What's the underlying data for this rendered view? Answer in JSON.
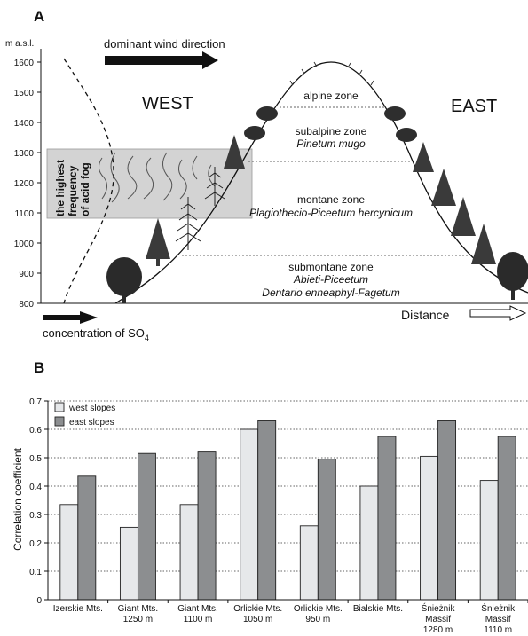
{
  "panel_a": {
    "label": "A",
    "yaxis_label": "m a.s.l.",
    "yticks": [
      "1600",
      "1500",
      "1400",
      "1300",
      "1200",
      "1100",
      "1000",
      "900",
      "800"
    ],
    "wind_label": "dominant wind direction",
    "west_label": "WEST",
    "east_label": "EAST",
    "fog_label": [
      "the highest",
      "frequency",
      "of acid fog"
    ],
    "zones": {
      "alpine": "alpine zone",
      "subalpine": "subalpine zone",
      "subalpine_species": "Pinetum mugo",
      "montane": "montane zone",
      "montane_species": "Plagiothecio-Piceetum hercynicum",
      "submontane": "submontane zone",
      "submontane_species_1": "Abieti-Piceetum",
      "submontane_species_2": "Dentario enneaphyl-Fagetum"
    },
    "concentration_label": "concentration of SO",
    "concentration_sub": "4",
    "distance_label": "Distance"
  },
  "chart_data": {
    "type": "bar",
    "panel_label": "B",
    "categories": [
      [
        "Izerskie Mts."
      ],
      [
        "Giant Mts.",
        "1250 m"
      ],
      [
        "Giant Mts.",
        "1100 m"
      ],
      [
        "Orlickie Mts.",
        "1050 m"
      ],
      [
        "Orlickie Mts.",
        "950 m"
      ],
      [
        "Bialskie Mts."
      ],
      [
        "Śnieżnik",
        "Massif",
        "1280 m"
      ],
      [
        "Śnieżnik",
        "Massif",
        "1110 m"
      ]
    ],
    "series": [
      {
        "name": "west slopes",
        "color": "#e6e8ea",
        "values": [
          0.335,
          0.255,
          0.335,
          0.6,
          0.26,
          0.4,
          0.505,
          0.42
        ]
      },
      {
        "name": "east slopes",
        "color": "#8c8e90",
        "values": [
          0.435,
          0.515,
          0.52,
          0.63,
          0.495,
          0.575,
          0.63,
          0.575
        ]
      }
    ],
    "ylabel": "Correlation coefficient",
    "ylim": [
      0,
      0.7
    ],
    "yticks": [
      "0",
      "0.1",
      "0.2",
      "0.3",
      "0.4",
      "0.5",
      "0.6",
      "0.7"
    ],
    "grid": true,
    "legend_position": "top-left"
  }
}
